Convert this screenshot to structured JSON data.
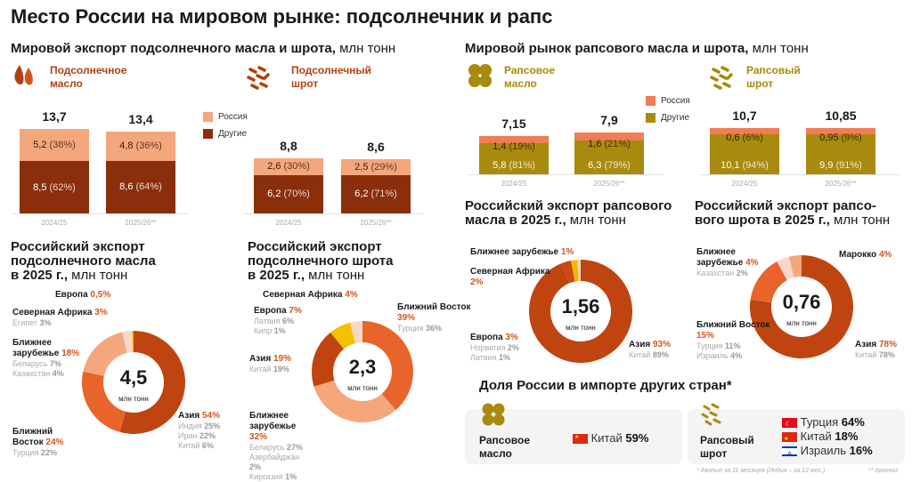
{
  "title": "Место России на мировом рынке: подсолнечник и рапс",
  "sections": {
    "sun_world": {
      "title": "Мировой экспорт подсолнечного масла и шрота,",
      "unit": " млн тонн"
    },
    "rape_world": {
      "title": "Мировой рынок рапсового масла и шрота,",
      "unit": " млн тонн"
    }
  },
  "legend": {
    "russia": "Россия",
    "others": "Другие"
  },
  "colors": {
    "sun_russia": "#f4a77c",
    "sun_others": "#8b2e0c",
    "rape_russia": "#f07d55",
    "rape_others": "#a88a0e"
  },
  "bar_charts": [
    {
      "product": [
        "Подсолнечное",
        "масло"
      ],
      "icon": "sunflower-oil-drops-icon",
      "bars": [
        {
          "year": "2024/25",
          "total": "13,7",
          "russia": 5.2,
          "russia_label": "5,2",
          "russia_pct": "(38%)",
          "others": 8.5,
          "others_label": "8,5",
          "others_pct": "(62%)"
        },
        {
          "year": "2025/26**",
          "total": "13,4",
          "russia": 4.8,
          "russia_label": "4,8",
          "russia_pct": "(36%)",
          "others": 8.6,
          "others_label": "8,6",
          "others_pct": "(64%)"
        }
      ]
    },
    {
      "product": [
        "Подсолнечный",
        "шрот"
      ],
      "icon": "sunflower-meal-icon",
      "bars": [
        {
          "year": "2024/25",
          "total": "8,8",
          "russia": 2.6,
          "russia_label": "2,6",
          "russia_pct": "(30%)",
          "others": 6.2,
          "others_label": "6,2",
          "others_pct": "(70%)"
        },
        {
          "year": "2025/26**",
          "total": "8,6",
          "russia": 2.5,
          "russia_label": "2,5",
          "russia_pct": "(29%)",
          "others": 6.2,
          "others_label": "6,2",
          "others_pct": "(71%)"
        }
      ]
    },
    {
      "product": [
        "Рапсовое",
        "масло"
      ],
      "icon": "rapeseed-flower-icon",
      "bars": [
        {
          "year": "2024/25",
          "total": "7,15",
          "russia": 1.4,
          "russia_label": "1,4",
          "russia_pct": "(19%)",
          "others": 5.8,
          "others_label": "5,8",
          "others_pct": "(81%)"
        },
        {
          "year": "2025/26**",
          "total": "7,9",
          "russia": 1.6,
          "russia_label": "1,6",
          "russia_pct": "(21%)",
          "others": 6.3,
          "others_label": "6,3",
          "others_pct": "(79%)"
        }
      ]
    },
    {
      "product": [
        "Рапсовый",
        "шрот"
      ],
      "icon": "rapeseed-meal-icon",
      "bars": [
        {
          "year": "2024/25",
          "total": "10,7",
          "russia": 0.6,
          "russia_label": "0,6",
          "russia_pct": "(6%)",
          "others": 10.1,
          "others_label": "10,1",
          "others_pct": "(94%)"
        },
        {
          "year": "2025/26**",
          "total": "10,85",
          "russia": 0.95,
          "russia_label": "0,95",
          "russia_pct": "(9%)",
          "others": 9.9,
          "others_label": "9,9",
          "others_pct": "(91%)"
        }
      ]
    }
  ],
  "donuts": [
    {
      "title": [
        "Российский экспорт",
        "подсолнечного масла",
        "в 2025 г.,"
      ],
      "unit": " млн тонн",
      "total": "4,5",
      "center_unit": "млн тонн",
      "segments": [
        {
          "name": "Азия",
          "pct": 54,
          "pct_label": "54%",
          "color": "#c0440f",
          "subs": [
            [
              "Индия",
              "25%"
            ],
            [
              "Иран",
              "22%"
            ],
            [
              "Китай",
              "6%"
            ]
          ]
        },
        {
          "name": "Ближний Восток",
          "pct": 24,
          "pct_label": "24%",
          "color": "#e8642a",
          "subs": [
            [
              "Турция",
              "22%"
            ]
          ]
        },
        {
          "name": "Ближнее зарубежье",
          "pct": 18,
          "pct_label": "18%",
          "color": "#f4a77c",
          "subs": [
            [
              "Беларусь",
              "7%"
            ],
            [
              "Казахстан",
              "4%"
            ]
          ]
        },
        {
          "name": "Северная Африка",
          "pct": 3,
          "pct_label": "3%",
          "color": "#f9d7c8",
          "subs": [
            [
              "Египет",
              "3%"
            ]
          ]
        },
        {
          "name": "Европа",
          "pct": 0.5,
          "pct_label": "0,5%",
          "color": "#f5b800",
          "subs": []
        }
      ]
    },
    {
      "title": [
        "Российский экспорт",
        "подсолнечного шрота",
        "в 2025 г.,"
      ],
      "unit": " млн тонн",
      "total": "2,3",
      "center_unit": "млн тонн",
      "segments": [
        {
          "name": "Ближний Восток",
          "pct": 39,
          "pct_label": "39%",
          "color": "#e8642a",
          "subs": [
            [
              "Турция",
              "36%"
            ]
          ]
        },
        {
          "name": "Ближнее зарубежье",
          "pct": 32,
          "pct_label": "32%",
          "color": "#f4a77c",
          "subs": [
            [
              "Беларусь",
              "27%"
            ],
            [
              "Азербайджан",
              "2%"
            ],
            [
              "Киргизия",
              "1%"
            ]
          ]
        },
        {
          "name": "Азия",
          "pct": 19,
          "pct_label": "19%",
          "color": "#c0440f",
          "subs": [
            [
              "Китай",
              "19%"
            ]
          ]
        },
        {
          "name": "Европа",
          "pct": 7,
          "pct_label": "7%",
          "color": "#f5c000",
          "subs": [
            [
              "Латвия",
              "6%"
            ],
            [
              "Кипр",
              "1%"
            ]
          ]
        },
        {
          "name": "Северная Африка",
          "pct": 4,
          "pct_label": "4%",
          "color": "#f9d7c8",
          "subs": []
        }
      ]
    },
    {
      "title": [
        "Российский экспорт рапсового",
        "масла в 2025 г.,"
      ],
      "unit": " млн тонн",
      "total": "1,56",
      "center_unit": "млн тонн",
      "segments": [
        {
          "name": "Азия",
          "pct": 93,
          "pct_label": "93%",
          "color": "#c0440f",
          "subs": [
            [
              "Китай",
              "89%"
            ]
          ]
        },
        {
          "name": "Европа",
          "pct": 3,
          "pct_label": "3%",
          "color": "#c94a12",
          "subs": [
            [
              "Норвегия",
              "2%"
            ],
            [
              "Латвия",
              "1%"
            ]
          ]
        },
        {
          "name": "Северная Африка",
          "pct": 2,
          "pct_label": "2%",
          "color": "#f5b800",
          "subs": []
        },
        {
          "name": "Ближнее зарубежье",
          "pct": 1,
          "pct_label": "1%",
          "color": "#f9d7c8",
          "subs": []
        }
      ]
    },
    {
      "title": [
        "Российский экспорт рапсо-",
        "вого шрота в 2025 г.,"
      ],
      "unit": " млн тонн",
      "total": "0,76",
      "center_unit": "млн тонн",
      "segments": [
        {
          "name": "Азия",
          "pct": 78,
          "pct_label": "78%",
          "color": "#c0440f",
          "subs": [
            [
              "Китай",
              "78%"
            ]
          ]
        },
        {
          "name": "Ближний Восток",
          "pct": 15,
          "pct_label": "15%",
          "color": "#e8642a",
          "subs": [
            [
              "Турция",
              "11%"
            ],
            [
              "Израиль",
              "4%"
            ]
          ]
        },
        {
          "name": "Ближнее зарубежье",
          "pct": 4,
          "pct_label": "4%",
          "color": "#f9d7c8",
          "subs": [
            [
              "Казахстан",
              "2%"
            ]
          ]
        },
        {
          "name": "Марокко",
          "pct": 4,
          "pct_label": "4%",
          "color": "#f4a77c",
          "subs": []
        }
      ]
    }
  ],
  "import_share": {
    "title": "Доля России в импорте других стран*",
    "oil": {
      "product": [
        "Рапсовое",
        "масло"
      ],
      "rows": [
        {
          "flag": "china-flag-icon",
          "country": "Китай",
          "value": "59%"
        }
      ]
    },
    "meal": {
      "product": [
        "Рапсовый",
        "шрот"
      ],
      "rows": [
        {
          "flag": "turkey-flag-icon",
          "country": "Турция",
          "value": "64%"
        },
        {
          "flag": "china-flag-icon",
          "country": "Китай",
          "value": "18%"
        },
        {
          "flag": "israel-flag-icon",
          "country": "Израиль",
          "value": "16%"
        }
      ]
    }
  },
  "footnotes": {
    "data": "* данные за 11 месяцев (Индия – за 12 мес.)",
    "forecast": "** прогноз"
  }
}
